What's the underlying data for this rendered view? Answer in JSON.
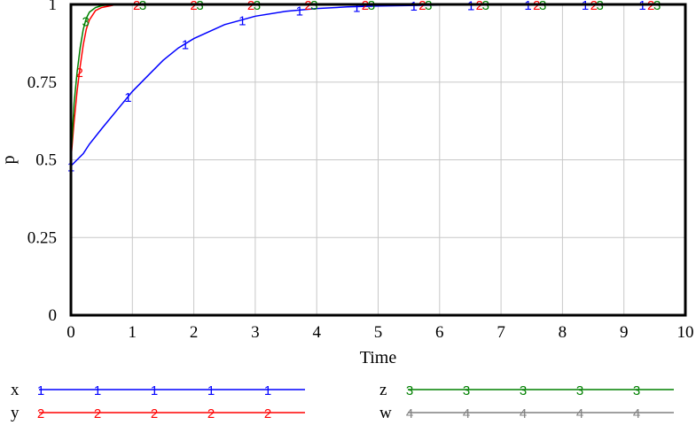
{
  "chart_data": {
    "type": "line",
    "title": "",
    "xlabel": "Time",
    "ylabel": "p",
    "xlim": [
      0,
      10
    ],
    "ylim": [
      0,
      1
    ],
    "x_ticks": [
      0,
      1,
      2,
      3,
      4,
      5,
      6,
      7,
      8,
      9,
      10
    ],
    "y_ticks": [
      0,
      0.25,
      0.5,
      0.75,
      1
    ],
    "y_tick_labels": [
      "0",
      "0.25",
      "0.5",
      "0.75",
      "1"
    ],
    "grid": true,
    "legend_position": "bottom",
    "series": [
      {
        "name": "x",
        "marker": "1",
        "color": "#0000ff",
        "x": [
          0,
          0.1,
          0.2,
          0.3,
          0.5,
          0.75,
          1.0,
          1.25,
          1.5,
          1.75,
          2.0,
          2.5,
          3.0,
          3.5,
          4.0,
          4.5,
          5.0,
          6.0,
          7.0,
          8.0,
          9.0,
          10.0
        ],
        "y": [
          0.48,
          0.5,
          0.52,
          0.55,
          0.6,
          0.66,
          0.72,
          0.77,
          0.82,
          0.86,
          0.89,
          0.935,
          0.962,
          0.978,
          0.987,
          0.992,
          0.995,
          0.998,
          0.999,
          1.0,
          1.0,
          1.0
        ]
      },
      {
        "name": "y",
        "marker": "2",
        "color": "#ff0000",
        "x": [
          0,
          0.05,
          0.1,
          0.15,
          0.2,
          0.25,
          0.3,
          0.4,
          0.5,
          0.7,
          1.0,
          2.0,
          4.0,
          6.0,
          8.0,
          10.0
        ],
        "y": [
          0.5,
          0.62,
          0.72,
          0.8,
          0.87,
          0.92,
          0.95,
          0.98,
          0.99,
          0.998,
          1.0,
          1.0,
          1.0,
          1.0,
          1.0,
          1.0
        ]
      },
      {
        "name": "z",
        "marker": "3",
        "color": "#008000",
        "x": [
          0,
          0.05,
          0.1,
          0.15,
          0.2,
          0.25,
          0.3,
          0.4,
          0.5,
          0.7,
          1.0,
          2.0,
          4.0,
          6.0,
          8.0,
          10.0
        ],
        "y": [
          0.5,
          0.68,
          0.78,
          0.86,
          0.92,
          0.955,
          0.975,
          0.99,
          0.996,
          1.0,
          1.0,
          1.0,
          1.0,
          1.0,
          1.0,
          1.0
        ]
      },
      {
        "name": "w",
        "marker": "4",
        "color": "#808080",
        "x": [],
        "y": []
      }
    ]
  }
}
